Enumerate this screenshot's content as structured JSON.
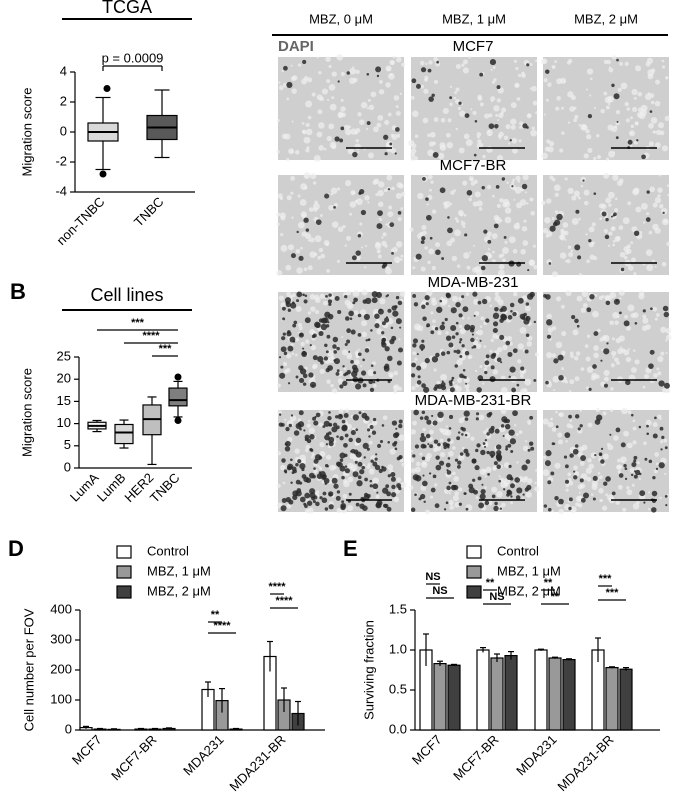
{
  "panel_labels": [
    "B",
    "D",
    "E"
  ],
  "chart_data": [
    {
      "type": "box",
      "title": "TCGA",
      "y_label": "Migration score",
      "annotation": "p = 0.0009",
      "categories": [
        "non-TNBC",
        "TNBC"
      ],
      "boxes": [
        {
          "whisker_low": -2.5,
          "q1": -0.6,
          "median": 0,
          "q3": 0.6,
          "whisker_high": 2.3,
          "outliers": [
            2.9,
            -2.8
          ],
          "color": "#d9d9d9"
        },
        {
          "whisker_low": -1.7,
          "q1": -0.5,
          "median": 0.3,
          "q3": 1.1,
          "whisker_high": 2.8,
          "outliers": [],
          "color": "#595959"
        }
      ],
      "ylim": [
        -4,
        4
      ],
      "yticks": [
        -4,
        -2,
        0,
        2,
        4
      ]
    },
    {
      "type": "box",
      "title": "Cell lines",
      "y_label": "Migration score",
      "categories": [
        "LumA",
        "LumB",
        "HER2",
        "TNBC"
      ],
      "boxes": [
        {
          "whisker_low": 8.2,
          "q1": 8.8,
          "median": 9.5,
          "q3": 10.3,
          "whisker_high": 10.7,
          "outliers": [],
          "color": "#f2f2f2"
        },
        {
          "whisker_low": 4.5,
          "q1": 5.5,
          "median": 8,
          "q3": 9.8,
          "whisker_high": 10.8,
          "outliers": [],
          "color": "#d9d9d9"
        },
        {
          "whisker_low": 0.8,
          "q1": 7.5,
          "median": 11,
          "q3": 14.2,
          "whisker_high": 16,
          "outliers": [],
          "color": "#bfbfbf"
        },
        {
          "whisker_low": 11.5,
          "q1": 14,
          "median": 15.3,
          "q3": 18,
          "whisker_high": 19.5,
          "outliers": [
            20.5,
            10.7
          ],
          "color": "#7f7f7f"
        }
      ],
      "significance": [
        "***",
        "****",
        "***"
      ],
      "ylim": [
        0,
        25
      ],
      "yticks": [
        0,
        5,
        10,
        15,
        20,
        25
      ]
    },
    {
      "type": "bar",
      "y_label": "Cell number per FOV",
      "categories": [
        "MCF7",
        "MCF7-BR",
        "MDA231",
        "MDA231-BR"
      ],
      "series": [
        {
          "name": "Control",
          "color": "#ffffff",
          "values": [
            8,
            3,
            135,
            245
          ],
          "errors": [
            4,
            2,
            25,
            50
          ]
        },
        {
          "name": "MBZ, 1 μM",
          "color": "#999999",
          "values": [
            3,
            3,
            98,
            100
          ],
          "errors": [
            2,
            2,
            40,
            40
          ]
        },
        {
          "name": "MBZ, 2 μM",
          "color": "#404040",
          "values": [
            2,
            5,
            3,
            55
          ],
          "errors": [
            2,
            2,
            2,
            40
          ]
        }
      ],
      "significance": [
        "**",
        "****",
        "****",
        "****"
      ],
      "ylim": [
        0,
        400
      ],
      "yticks": [
        0,
        100,
        200,
        300,
        400
      ]
    },
    {
      "type": "bar",
      "y_label": "Surviving fraction",
      "categories": [
        "MCF7",
        "MCF7-BR",
        "MDA231",
        "MDA231-BR"
      ],
      "series": [
        {
          "name": "Control",
          "color": "#ffffff",
          "values": [
            1.0,
            1.0,
            1.0,
            1.0
          ],
          "errors": [
            0.2,
            0.03,
            0.01,
            0.15
          ]
        },
        {
          "name": "MBZ, 1 μM",
          "color": "#999999",
          "values": [
            0.83,
            0.9,
            0.9,
            0.78
          ],
          "errors": [
            0.03,
            0.05,
            0.01,
            0.01
          ]
        },
        {
          "name": "MBZ, 2 μM",
          "color": "#404040",
          "values": [
            0.81,
            0.93,
            0.88,
            0.76
          ],
          "errors": [
            0.01,
            0.05,
            0.01,
            0.02
          ]
        }
      ],
      "significance": [
        "NS",
        "NS",
        "**",
        "NS",
        "**",
        "**",
        "***",
        "***"
      ],
      "ylim": [
        0,
        1.5
      ],
      "yticks": [
        {
          "value": 0,
          "label": "0.0"
        },
        0.5,
        {
          "value": 1,
          "label": "1.0"
        },
        1.5
      ]
    }
  ],
  "micrographs": {
    "stain": "DAPI",
    "columns": [
      "MBZ, 0 μM",
      "MBZ, 1 μM",
      "MBZ, 2 μM"
    ],
    "rows": [
      "MCF7",
      "MCF7-BR",
      "MDA-MB-231",
      "MDA-MB-231-BR"
    ]
  }
}
